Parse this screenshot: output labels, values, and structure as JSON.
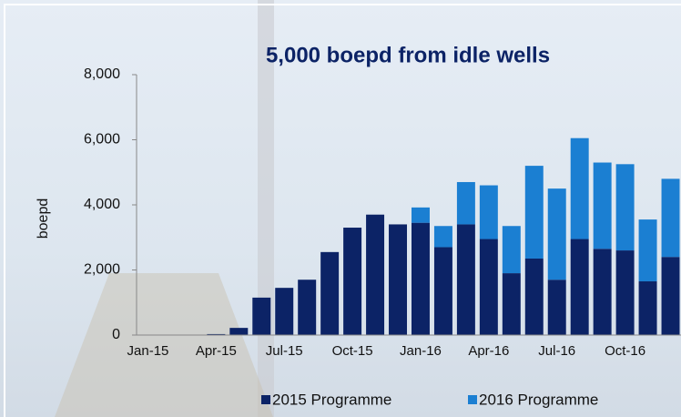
{
  "chart_data": {
    "type": "stacked_bar",
    "title": "5,000 boepd from idle wells",
    "y_label": "boepd",
    "categories": [
      "Jan-15",
      null,
      null,
      "Apr-15",
      null,
      null,
      "Jul-15",
      null,
      null,
      "Oct-15",
      null,
      null,
      "Jan-16",
      null,
      null,
      "Apr-16",
      null,
      null,
      "Jul-16",
      null,
      null,
      "Oct-16",
      null,
      null
    ],
    "series": [
      {
        "name": "2015 Programme",
        "color": "#0c2366",
        "values": [
          0,
          0,
          0,
          30,
          220,
          1150,
          1450,
          1700,
          2550,
          3300,
          3700,
          3400,
          3450,
          2700,
          3400,
          2950,
          1900,
          2350,
          1700,
          2950,
          2650,
          2600,
          1650,
          2400
        ]
      },
      {
        "name": "2016 Programme",
        "color": "#1b7fd2",
        "values": [
          0,
          0,
          0,
          0,
          0,
          0,
          0,
          0,
          0,
          0,
          0,
          0,
          470,
          650,
          1300,
          1650,
          1450,
          2850,
          2800,
          3100,
          2650,
          2650,
          1900,
          2400
        ]
      }
    ],
    "ylim": [
      0,
      8000
    ],
    "yticks": [
      0,
      {
        "value": 2000,
        "label": "2,000"
      },
      {
        "value": 4000,
        "label": "4,000"
      },
      {
        "value": 6000,
        "label": "6,000"
      },
      {
        "value": 8000,
        "label": "8,000"
      }
    ],
    "legend": "bottom"
  }
}
